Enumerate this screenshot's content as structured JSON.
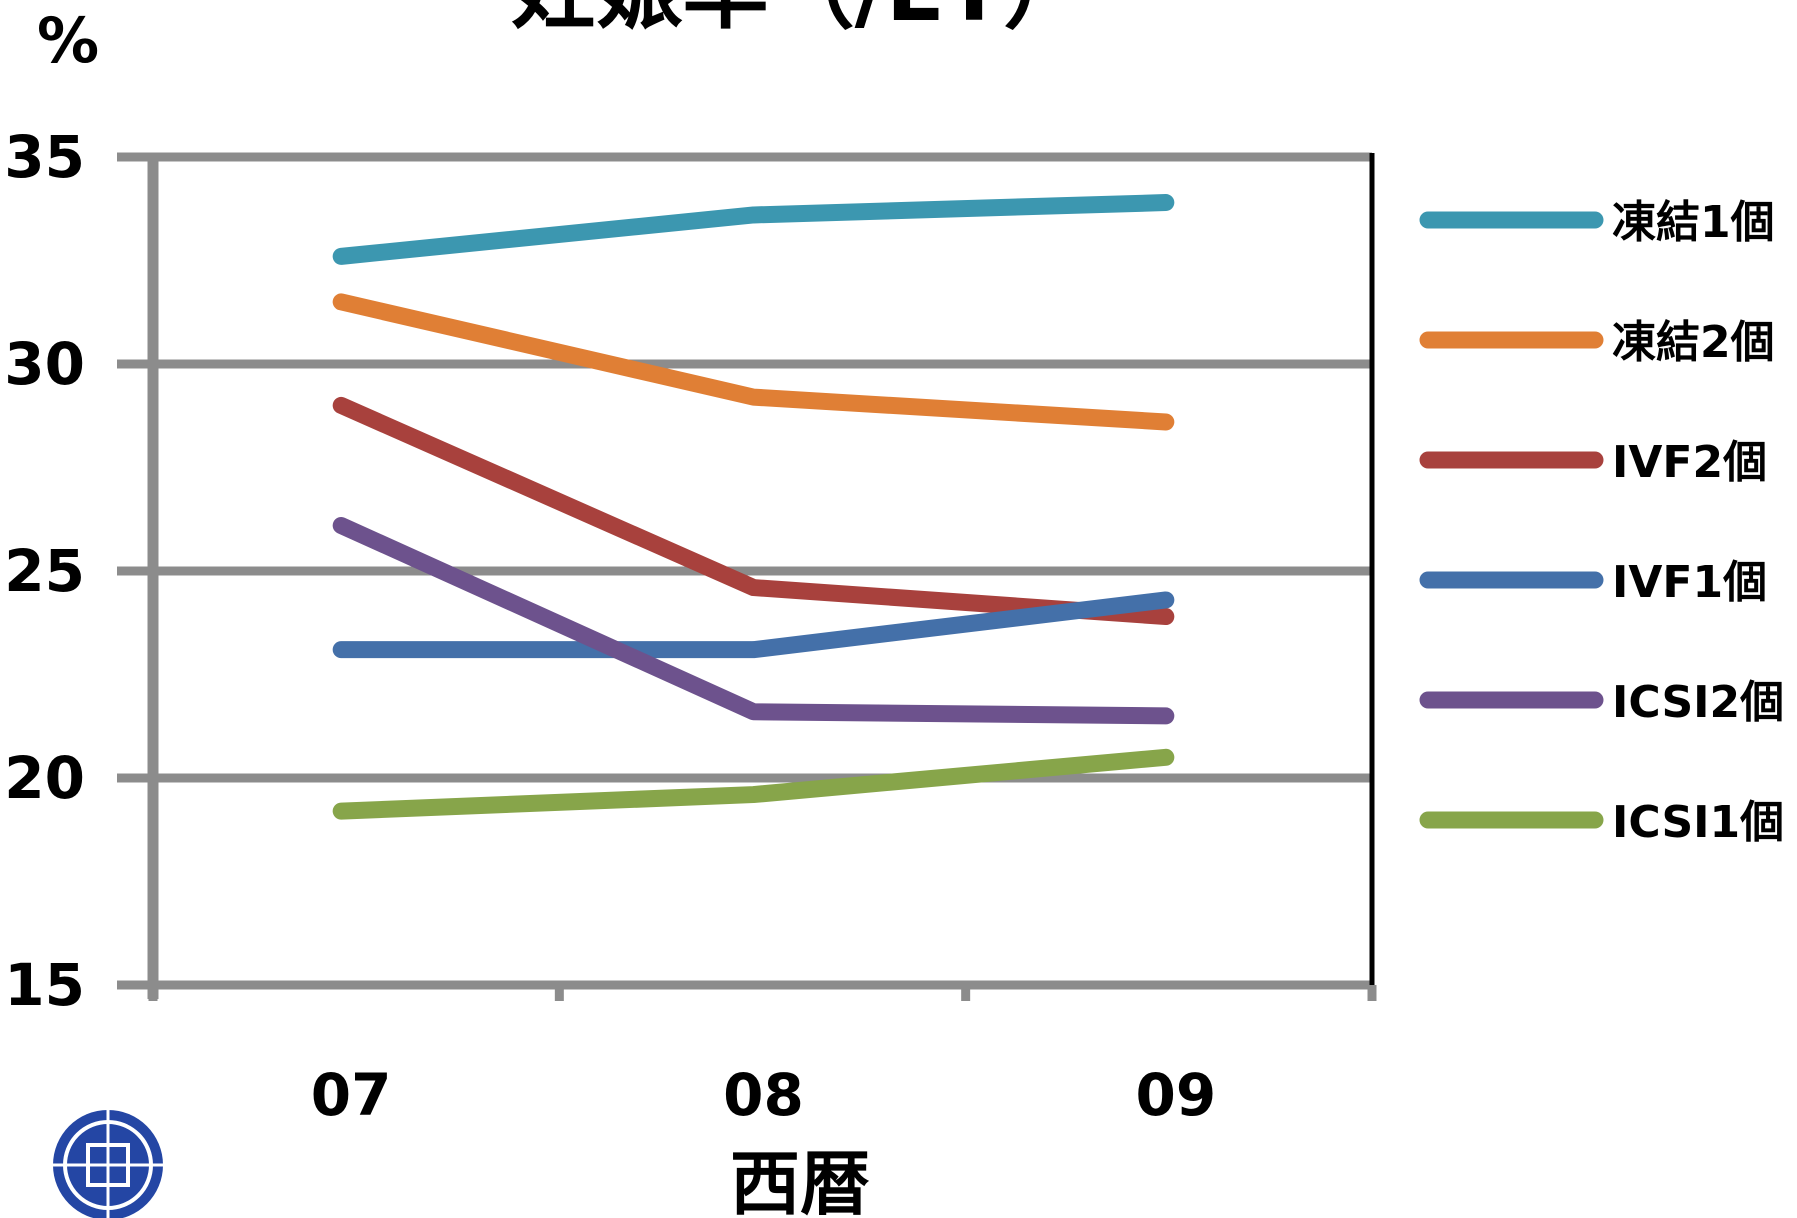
{
  "chart_data": {
    "type": "line",
    "title": "妊娠率（/ET）",
    "y_unit": "%",
    "xlabel": "西暦",
    "ylabel": "",
    "categories": [
      "07",
      "08",
      "09"
    ],
    "ylim": [
      15,
      35
    ],
    "yticks": [
      "15",
      "20",
      "25",
      "30",
      "35"
    ],
    "grid": true,
    "legend_position": "right",
    "series": [
      {
        "name": "凍結1個",
        "color": "#3C97B0",
        "values": [
          32.6,
          33.6,
          33.9
        ]
      },
      {
        "name": "凍結2個",
        "color": "#E07F35",
        "values": [
          31.5,
          29.2,
          28.6
        ]
      },
      {
        "name": "IVF2個",
        "color": "#A8413D",
        "values": [
          29.0,
          24.6,
          23.9
        ]
      },
      {
        "name": "IVF1個",
        "color": "#4470A9",
        "values": [
          23.1,
          23.1,
          24.3
        ]
      },
      {
        "name": "ICSI2個",
        "color": "#6D528D",
        "values": [
          26.1,
          21.6,
          21.5
        ]
      },
      {
        "name": "ICSI1個",
        "color": "#87A54A",
        "values": [
          19.2,
          19.6,
          20.5
        ]
      }
    ]
  },
  "logo": {
    "name": "clinic-logo",
    "color": "#2446A4"
  }
}
